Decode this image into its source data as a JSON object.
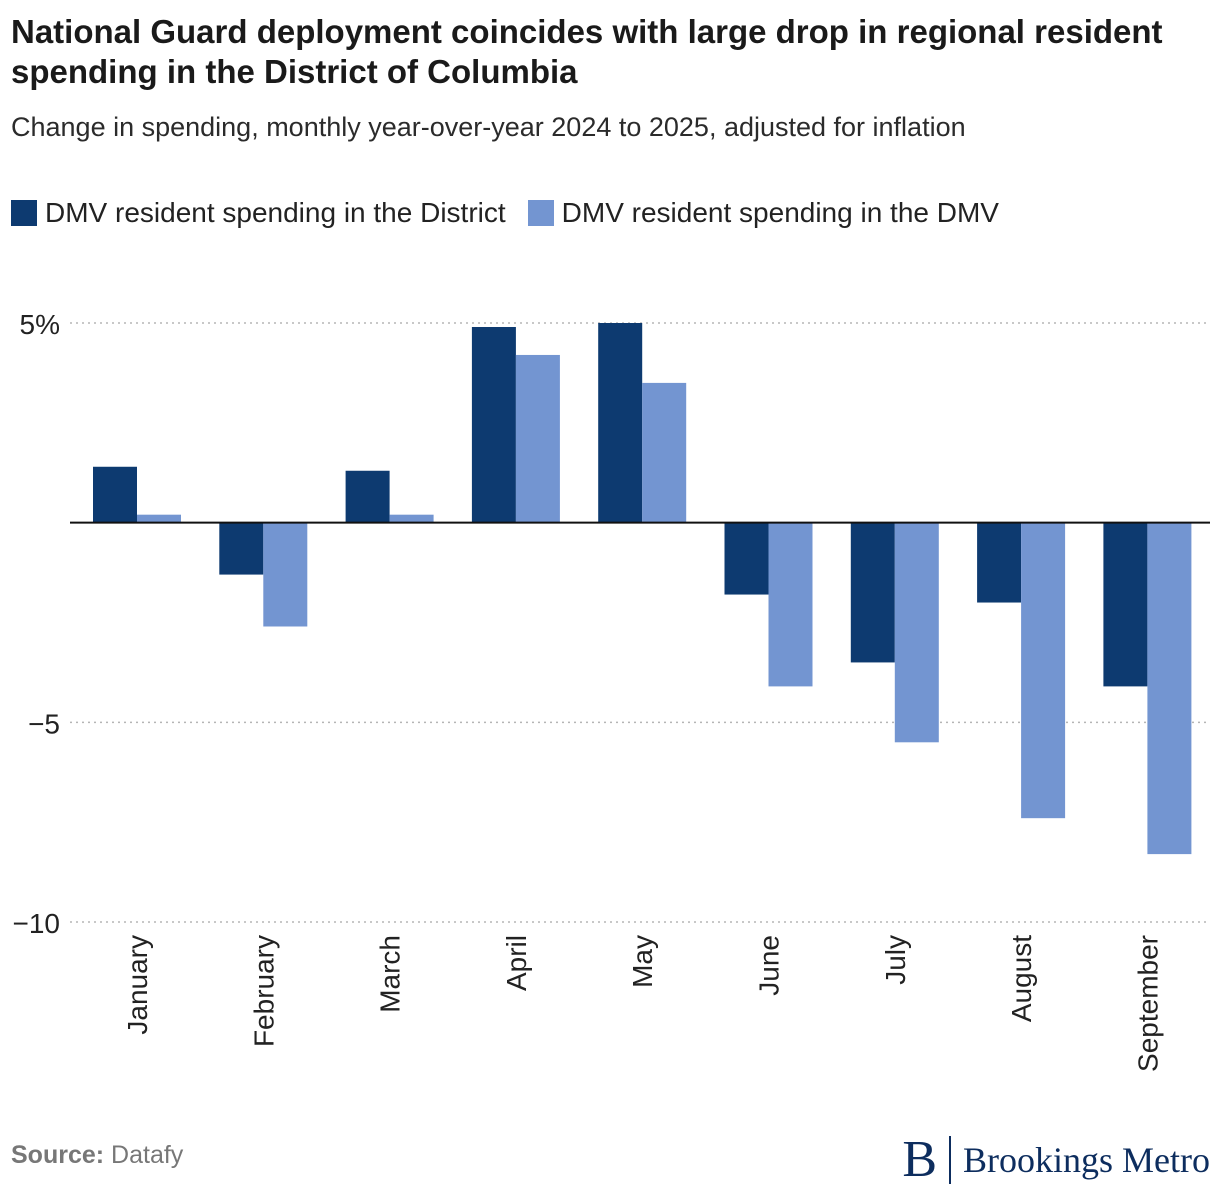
{
  "header": {
    "title": "National Guard deployment coincides with large drop in regional resident spending in the District of Columbia",
    "subtitle": "Change in spending, monthly year-over-year 2024 to 2025, adjusted for inflation"
  },
  "legend": [
    {
      "label": "DMV resident spending in the District",
      "color": "#0d3a70"
    },
    {
      "label": "DMV resident spending in the DMV",
      "color": "#7395d1"
    }
  ],
  "footer": {
    "source_label": "Source:",
    "source_text": "Datafy",
    "logo_mark": "B",
    "logo_text": "Brookings Metro"
  },
  "chart_data": {
    "type": "bar",
    "title": "National Guard deployment coincides with large drop in regional resident spending in the District of Columbia",
    "subtitle": "Change in spending, monthly year-over-year 2024 to 2025, adjusted for inflation",
    "xlabel": "",
    "ylabel": "",
    "categories": [
      "January",
      "February",
      "March",
      "April",
      "May",
      "June",
      "July",
      "August",
      "September"
    ],
    "series": [
      {
        "name": "DMV resident spending in the District",
        "color": "#0d3a70",
        "values": [
          1.4,
          -1.3,
          1.3,
          4.9,
          5.0,
          -1.8,
          -3.5,
          -2.0,
          -4.1
        ]
      },
      {
        "name": "DMV resident spending in the DMV",
        "color": "#7395d1",
        "values": [
          0.2,
          -2.6,
          0.2,
          4.2,
          3.5,
          -4.1,
          -5.5,
          -7.4,
          -8.3
        ]
      }
    ],
    "ylim": [
      -10,
      5
    ],
    "yticks": [
      5,
      -5,
      -10
    ],
    "ytick_labels": [
      "5%",
      "−5",
      "−10"
    ],
    "grid": true,
    "legend_position": "top-left"
  }
}
